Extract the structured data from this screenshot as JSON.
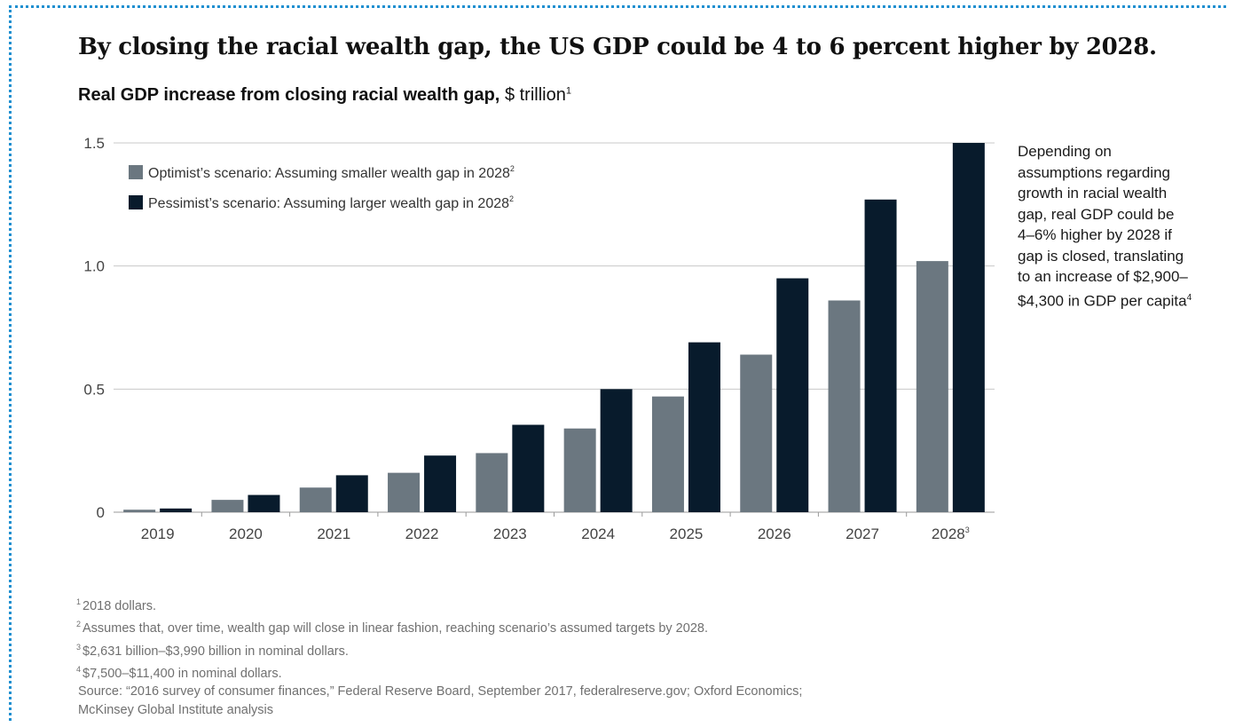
{
  "headline": "By closing the racial wealth gap, the US GDP could be 4 to 6 percent higher by 2028.",
  "subtitle": {
    "bold": "Real GDP increase from closing racial wealth gap,",
    "unit": "$ trillion",
    "sup": "1"
  },
  "side_note": {
    "text": "Depending on assumptions regarding growth in racial wealth gap, real GDP could be 4–6% higher by 2028 if gap is closed, translating to an increase of $2,900–$4,300 in GDP per capita",
    "sup": "4"
  },
  "footnotes": [
    {
      "mark": "1",
      "text": "2018 dollars."
    },
    {
      "mark": "2",
      "text": "Assumes that, over time, wealth gap will close in linear fashion, reaching scenario’s assumed targets by 2028."
    },
    {
      "mark": "3",
      "text": "$2,631 billion–$3,990 billion in nominal dollars."
    },
    {
      "mark": "4",
      "text": "$7,500–$11,400 in nominal dollars."
    }
  ],
  "source": [
    "Source: “2016 survey of consumer finances,” Federal Reserve Board, September 2017, federalreserve.gov; Oxford Economics;",
    "McKinsey Global Institute analysis"
  ],
  "colors": {
    "optimist": "#6b7780",
    "pessimist": "#081b2c",
    "grid": "#c8c8c8",
    "frame": "#1e8fd0"
  },
  "chart_data": {
    "type": "bar",
    "categories": [
      "2019",
      "2020",
      "2021",
      "2022",
      "2023",
      "2024",
      "2025",
      "2026",
      "2027",
      "2028"
    ],
    "category_sup": [
      "",
      "",
      "",
      "",
      "",
      "",
      "",
      "",
      "",
      "3"
    ],
    "series": [
      {
        "name": "Optimist’s scenario: Assuming smaller wealth gap in 2028",
        "sup": "2",
        "values": [
          0.01,
          0.05,
          0.1,
          0.16,
          0.24,
          0.34,
          0.47,
          0.64,
          0.86,
          1.02
        ]
      },
      {
        "name": "Pessimist’s scenario: Assuming larger wealth gap in 2028",
        "sup": "2",
        "values": [
          0.015,
          0.07,
          0.15,
          0.23,
          0.355,
          0.5,
          0.69,
          0.95,
          1.27,
          1.5
        ]
      }
    ],
    "y_ticks": [
      "0",
      "0.5",
      "1.0",
      "1.5"
    ],
    "y_tick_values": [
      0,
      0.5,
      1.0,
      1.5
    ],
    "ylim": [
      0,
      1.5
    ],
    "grid": true,
    "legend_position": "top-left"
  }
}
